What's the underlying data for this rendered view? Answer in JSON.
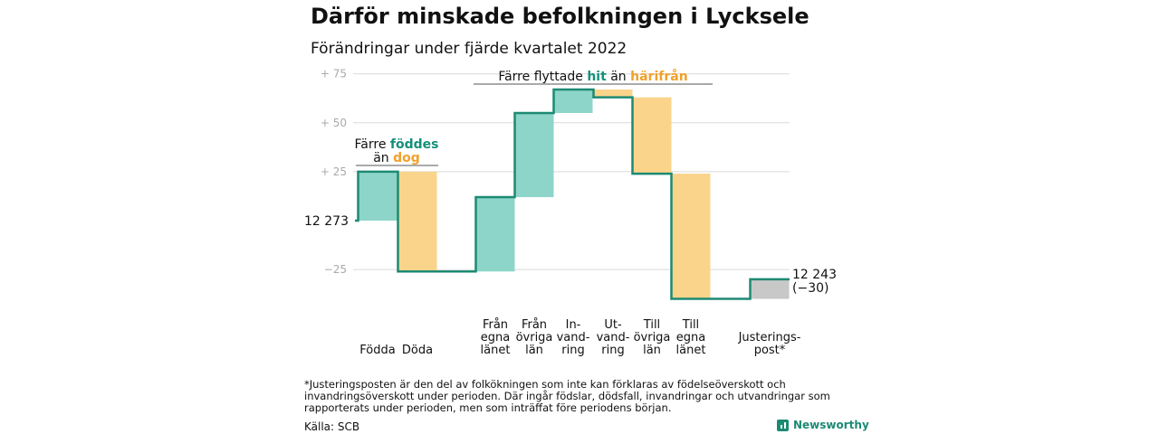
{
  "title": "Därför minskade befolkningen i Lycksele",
  "subtitle": "Förändringar under fjärde kvartalet 2022",
  "footnote": "*Justeringsposten är den del av folkökningen som inte kan förklaras av födelseöverskott och invandringsöverskott under perioden. Där ingår födslar, dödsfall, invandringar och utvandringar som rapporterats under perioden, men som inträffat före periodens början.",
  "source": "Källa: SCB",
  "logo_text": "Newsworthy",
  "colors": {
    "increase": "#8dd5c9",
    "decrease": "#fad48b",
    "adjustment": "#c8c8c8",
    "line": "#1d8a73",
    "orange_text": "#f0a12b",
    "green_text": "#14907a"
  },
  "chart_data": {
    "type": "waterfall",
    "title": "Därför minskade befolkningen i Lycksele",
    "subtitle": "Förändringar under fjärde kvartalet 2022",
    "start_value": 12273,
    "start_label": "12 273",
    "end_value": 12243,
    "end_label": "12 243",
    "end_change_label": "(−30)",
    "y_ticks": [
      {
        "value": 75,
        "label": "+ 75"
      },
      {
        "value": 50,
        "label": "+ 50"
      },
      {
        "value": 25,
        "label": "+ 25"
      },
      {
        "value": -25,
        "label": "−25"
      }
    ],
    "ylim": [
      -45,
      80
    ],
    "steps": [
      {
        "label": "Födda",
        "lines": [
          "Födda"
        ],
        "change": 25,
        "kind": "increase"
      },
      {
        "label": "Döda",
        "lines": [
          "Döda"
        ],
        "change": -51,
        "kind": "decrease"
      },
      {
        "label": "Från egna länet",
        "lines": [
          "Från",
          "egna",
          "länet"
        ],
        "change": 38,
        "kind": "increase"
      },
      {
        "label": "Från övriga län",
        "lines": [
          "Från",
          "övriga",
          "län"
        ],
        "change": 43,
        "kind": "increase"
      },
      {
        "label": "Invandring",
        "lines": [
          "In-",
          "vand-",
          "ring"
        ],
        "change": 12,
        "kind": "increase"
      },
      {
        "label": "Utvandring",
        "lines": [
          "Ut-",
          "vand-",
          "ring"
        ],
        "change": -4,
        "kind": "decrease"
      },
      {
        "label": "Till övriga län",
        "lines": [
          "Till",
          "övriga",
          "län"
        ],
        "change": -39,
        "kind": "decrease"
      },
      {
        "label": "Till egna länet",
        "lines": [
          "Till",
          "egna",
          "länet"
        ],
        "change": -64,
        "kind": "decrease"
      },
      {
        "label": "Justeringspost*",
        "lines": [
          "Justerings-",
          "post*"
        ],
        "change": 10,
        "kind": "adjustment"
      }
    ],
    "annotations": [
      {
        "lines": [
          [
            {
              "t": "Färre ",
              "c": ""
            },
            {
              "t": "föddes",
              "c": "green"
            }
          ],
          [
            {
              "t": "än ",
              "c": ""
            },
            {
              "t": "dog",
              "c": "orange"
            }
          ]
        ]
      },
      {
        "lines": [
          [
            {
              "t": "Färre flyttade ",
              "c": ""
            },
            {
              "t": "hit",
              "c": "green"
            },
            {
              "t": " än ",
              "c": ""
            },
            {
              "t": "härifrån",
              "c": "orange"
            }
          ]
        ]
      }
    ]
  }
}
